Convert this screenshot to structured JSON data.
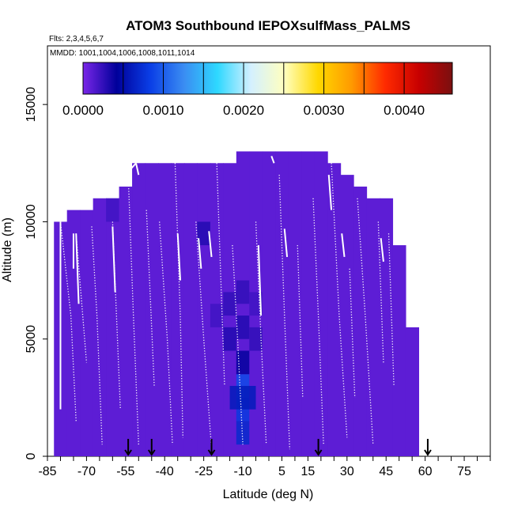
{
  "chart_data": {
    "type": "heatmap",
    "title": "ATOM3 Southbound IEPOXsulfMass_PALMS",
    "subtitle_flights": "Flts: 2,3,4,5,6,7",
    "subtitle_dates": "MMDD: 1001,1004,1006,1008,1011,1014",
    "xlabel": "Latitude (deg N)",
    "ylabel": "Altitude (m)",
    "xlim": [
      -85,
      85
    ],
    "ylim": [
      0,
      17500
    ],
    "x_ticks": [
      -85,
      -70,
      -55,
      -40,
      -25,
      -10,
      5,
      15,
      30,
      45,
      60,
      75
    ],
    "x_tick_labels": [
      "-85",
      "-70",
      "-55",
      "-40",
      "-25",
      "-10",
      "5",
      "15",
      "30",
      "45",
      "60",
      "75"
    ],
    "y_ticks": [
      0,
      5000,
      10000,
      15000
    ],
    "y_tick_labels": [
      "0",
      "5000",
      "10000",
      "15000"
    ],
    "colorbar": {
      "range": [
        0,
        0.0046
      ],
      "ticks": [
        0,
        0.001,
        0.002,
        0.003,
        0.004
      ],
      "tick_labels": [
        "0.0000",
        "0.0010",
        "0.0020",
        "0.0030",
        "0.0040"
      ],
      "colors": [
        "#7a26e8",
        "#00009a",
        "#0a3ee6",
        "#3a8cf2",
        "#2ed8ff",
        "#d4f0ff",
        "#ffffbf",
        "#ffd800",
        "#ff9a00",
        "#ff2a00",
        "#c80000",
        "#7a1010"
      ]
    },
    "base_value": 0.0001,
    "coverage_columns": [
      {
        "lat": -80,
        "top": 10000
      },
      {
        "lat": -75,
        "top": 10500
      },
      {
        "lat": -70,
        "top": 10500
      },
      {
        "lat": -65,
        "top": 11000
      },
      {
        "lat": -60,
        "top": 11000
      },
      {
        "lat": -55,
        "top": 11500
      },
      {
        "lat": -50,
        "top": 12500
      },
      {
        "lat": -45,
        "top": 12500
      },
      {
        "lat": -40,
        "top": 12500
      },
      {
        "lat": -35,
        "top": 12500
      },
      {
        "lat": -30,
        "top": 12500
      },
      {
        "lat": -25,
        "top": 12500
      },
      {
        "lat": -20,
        "top": 12500
      },
      {
        "lat": -15,
        "top": 12500
      },
      {
        "lat": -10,
        "top": 13000
      },
      {
        "lat": -5,
        "top": 13000
      },
      {
        "lat": 0,
        "top": 13000
      },
      {
        "lat": 5,
        "top": 13000
      },
      {
        "lat": 10,
        "top": 13000
      },
      {
        "lat": 15,
        "top": 13000
      },
      {
        "lat": 20,
        "top": 13000
      },
      {
        "lat": 25,
        "top": 12500
      },
      {
        "lat": 30,
        "top": 12000
      },
      {
        "lat": 35,
        "top": 11500
      },
      {
        "lat": 40,
        "top": 11000
      },
      {
        "lat": 45,
        "top": 11000
      },
      {
        "lat": 50,
        "top": 9000
      },
      {
        "lat": 55,
        "top": 5500
      }
    ],
    "enhanced_cells": [
      {
        "lat": -10,
        "alt": 2000,
        "value": 0.0008
      },
      {
        "lat": -10,
        "alt": 3000,
        "value": 0.0009
      },
      {
        "lat": -10,
        "alt": 1000,
        "value": 0.0007
      },
      {
        "lat": -12.5,
        "alt": 2500,
        "value": 0.0006
      },
      {
        "lat": -7.5,
        "alt": 2500,
        "value": 0.0006
      },
      {
        "lat": -10,
        "alt": 4000,
        "value": 0.0004
      },
      {
        "lat": -15,
        "alt": 5000,
        "value": 0.0003
      },
      {
        "lat": -10,
        "alt": 5500,
        "value": 0.0003
      },
      {
        "lat": -5,
        "alt": 5000,
        "value": 0.00025
      },
      {
        "lat": -15,
        "alt": 6500,
        "value": 0.00025
      },
      {
        "lat": -10,
        "alt": 7000,
        "value": 0.00025
      },
      {
        "lat": -5,
        "alt": 6500,
        "value": 0.0002
      },
      {
        "lat": -20,
        "alt": 6000,
        "value": 0.0002
      },
      {
        "lat": -25,
        "alt": 9500,
        "value": 0.0003
      },
      {
        "lat": -60,
        "alt": 10500,
        "value": 0.0002
      }
    ],
    "flight_tracks": [
      {
        "x": [
          -80,
          -76,
          -74
        ],
        "y": [
          10000,
          6000,
          1500
        ]
      },
      {
        "x": [
          -74,
          -70
        ],
        "y": [
          9500,
          4000
        ]
      },
      {
        "x": [
          -68,
          -66,
          -64
        ],
        "y": [
          9800,
          6000,
          500
        ]
      },
      {
        "x": [
          -60,
          -57
        ],
        "y": [
          10000,
          2000
        ]
      },
      {
        "x": [
          -54,
          -52,
          -50
        ],
        "y": [
          12000,
          6000,
          500
        ]
      },
      {
        "x": [
          -47,
          -44
        ],
        "y": [
          10500,
          3000
        ]
      },
      {
        "x": [
          -42,
          -39,
          -37
        ],
        "y": [
          10000,
          5000,
          500
        ]
      },
      {
        "x": [
          -36,
          -34,
          -33
        ],
        "y": [
          12500,
          6000,
          800
        ]
      },
      {
        "x": [
          -28,
          -25,
          -22
        ],
        "y": [
          10000,
          5000,
          300
        ]
      },
      {
        "x": [
          -20,
          -17
        ],
        "y": [
          12500,
          3000
        ]
      },
      {
        "x": [
          -14,
          -12,
          -10
        ],
        "y": [
          9000,
          5000,
          500
        ]
      },
      {
        "x": [
          -5,
          -3,
          -1
        ],
        "y": [
          10000,
          5000,
          500
        ]
      },
      {
        "x": [
          4,
          6,
          8
        ],
        "y": [
          12000,
          6000,
          300
        ]
      },
      {
        "x": [
          11,
          13
        ],
        "y": [
          9000,
          2500
        ]
      },
      {
        "x": [
          17,
          19,
          21
        ],
        "y": [
          11000,
          6000,
          500
        ]
      },
      {
        "x": [
          24,
          27,
          30
        ],
        "y": [
          12500,
          6000,
          800
        ]
      },
      {
        "x": [
          31,
          33
        ],
        "y": [
          8000,
          2500
        ]
      },
      {
        "x": [
          34,
          37,
          40
        ],
        "y": [
          11000,
          6000,
          500
        ]
      },
      {
        "x": [
          42,
          44
        ],
        "y": [
          10000,
          4000
        ]
      },
      {
        "x": [
          46,
          48
        ],
        "y": [
          9500,
          3000
        ]
      }
    ],
    "solid_tracks": [
      {
        "x": [
          -80,
          -80
        ],
        "y": [
          10000,
          2000
        ]
      },
      {
        "x": [
          -74,
          -73
        ],
        "y": [
          9500,
          6500
        ]
      },
      {
        "x": [
          -60,
          -59
        ],
        "y": [
          9800,
          7000
        ]
      },
      {
        "x": [
          -55,
          -51
        ],
        "y": [
          12000,
          12500
        ]
      },
      {
        "x": [
          -51,
          -50
        ],
        "y": [
          12500,
          12000
        ]
      },
      {
        "x": [
          -35,
          -34
        ],
        "y": [
          9500,
          7500
        ]
      },
      {
        "x": [
          -27,
          -26
        ],
        "y": [
          9300,
          8000
        ]
      },
      {
        "x": [
          -23,
          -22
        ],
        "y": [
          9600,
          8500
        ]
      },
      {
        "x": [
          -4,
          -3
        ],
        "y": [
          9000,
          6000
        ]
      },
      {
        "x": [
          1,
          2
        ],
        "y": [
          12800,
          12500
        ]
      },
      {
        "x": [
          6,
          7
        ],
        "y": [
          9700,
          8500
        ]
      },
      {
        "x": [
          23,
          24
        ],
        "y": [
          12000,
          10500
        ]
      },
      {
        "x": [
          28,
          29
        ],
        "y": [
          9500,
          8500
        ]
      },
      {
        "x": [
          43,
          44
        ],
        "y": [
          9300,
          8300
        ]
      },
      {
        "x": [
          -75,
          -75
        ],
        "y": [
          9500,
          8000
        ]
      }
    ],
    "flight_markers_lat": [
      -54,
      -45,
      -22,
      19,
      61
    ]
  }
}
